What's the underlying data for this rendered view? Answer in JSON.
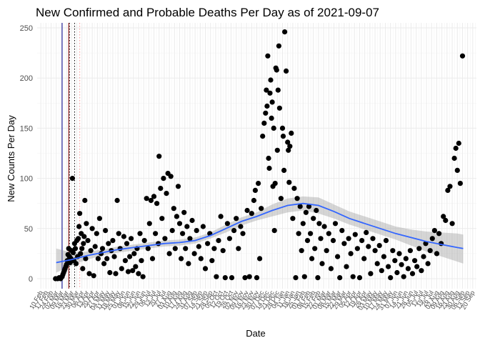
{
  "chart_data": {
    "type": "scatter",
    "title": "New Confirmed and Probable Deaths Per Day as of 2021-09-07",
    "xlabel": "Date",
    "ylabel": "New Counts Per Day",
    "xlim": [
      "2020-02-05",
      "2021-09-25"
    ],
    "ylim": [
      -10,
      255
    ],
    "y_ticks": [
      0,
      50,
      100,
      150,
      200,
      250
    ],
    "x_tick_labels": [
      "10 Feb",
      "17 Feb",
      "24 Feb",
      "02 Mar",
      "09 Mar",
      "16 Mar",
      "23 Mar",
      "30 Mar",
      "06 Apr",
      "13 Apr",
      "20 Apr",
      "27 Apr",
      "04 May",
      "11 May",
      "18 May",
      "25 May",
      "01 Jun",
      "08 Jun",
      "15 Jun",
      "22 Jun",
      "29 Jun",
      "06 Jul",
      "13 Jul",
      "20 Jul",
      "27 Jul",
      "03 Aug",
      "10 Aug",
      "17 Aug",
      "24 Aug",
      "31 Aug",
      "07 Sep",
      "14 Sep",
      "21 Sep",
      "28 Sep",
      "05 Oct",
      "12 Oct",
      "19 Oct",
      "26 Oct",
      "02 Nov",
      "09 Nov",
      "16 Nov",
      "23 Nov",
      "30 Nov",
      "07 Dec",
      "14 Dec",
      "21 Dec",
      "28 Dec",
      "04 Jan",
      "11 Jan",
      "18 Jan",
      "25 Jan",
      "01 Feb",
      "08 Feb",
      "15 Feb",
      "22 Feb",
      "01 Mar",
      "08 Mar",
      "15 Mar",
      "22 Mar",
      "29 Mar",
      "05 Apr",
      "12 Apr",
      "19 Apr",
      "26 Apr",
      "03 May",
      "10 May",
      "17 May",
      "24 May",
      "31 May",
      "07 Jun",
      "14 Jun",
      "21 Jun",
      "28 Jun",
      "05 Jul",
      "12 Jul",
      "19 Jul",
      "26 Jul",
      "02 Aug",
      "09 Aug",
      "16 Aug",
      "23 Aug",
      "30 Aug",
      "06 Sep",
      "13 Sep",
      "20 Sep"
    ],
    "grid": true,
    "point_color": "#000000",
    "smooth_color": "#3366ff",
    "band_color": "#999999",
    "vlines": [
      {
        "x": "2020-03-10",
        "color": "#00008b",
        "style": "solid"
      },
      {
        "x": "2020-03-19",
        "color": "#8b0000",
        "style": "solid"
      },
      {
        "x": "2020-03-20",
        "color": "#000000",
        "style": "dotted"
      },
      {
        "x": "2020-03-27",
        "color": "#000000",
        "style": "dotted"
      },
      {
        "x": "2020-04-03",
        "color": "#ff9999",
        "style": "dotted"
      }
    ],
    "smooth": {
      "x": [
        "2020-03-02",
        "2020-03-23",
        "2020-04-13",
        "2020-05-04",
        "2020-05-25",
        "2020-06-15",
        "2020-07-06",
        "2020-07-27",
        "2020-08-17",
        "2020-09-07",
        "2020-09-28",
        "2020-10-19",
        "2020-11-09",
        "2020-11-30",
        "2020-12-21",
        "2021-01-11",
        "2021-02-01",
        "2021-02-22",
        "2021-03-15",
        "2021-04-05",
        "2021-04-26",
        "2021-05-17",
        "2021-06-07",
        "2021-06-28",
        "2021-07-19",
        "2021-08-09",
        "2021-08-30",
        "2021-09-07"
      ],
      "y": [
        16,
        19,
        23,
        26,
        29,
        31,
        33,
        35,
        36,
        38,
        43,
        50,
        57,
        62,
        68,
        73,
        75,
        73,
        67,
        60,
        55,
        50,
        45,
        41,
        37,
        34,
        31,
        30
      ],
      "lower": [
        6,
        13,
        19,
        23,
        26,
        28,
        30,
        32,
        33,
        35,
        40,
        46,
        53,
        58,
        62,
        66,
        68,
        65,
        60,
        54,
        49,
        44,
        39,
        33,
        27,
        22,
        17,
        15
      ],
      "upper": [
        30,
        26,
        27,
        29,
        32,
        34,
        36,
        38,
        39,
        41,
        46,
        54,
        61,
        66,
        74,
        80,
        82,
        81,
        74,
        67,
        62,
        57,
        52,
        49,
        47,
        46,
        45,
        44
      ]
    },
    "points": [
      [
        "2020-03-01",
        0
      ],
      [
        "2020-03-04",
        0
      ],
      [
        "2020-03-06",
        1
      ],
      [
        "2020-03-08",
        0
      ],
      [
        "2020-03-10",
        2
      ],
      [
        "2020-03-11",
        4
      ],
      [
        "2020-03-12",
        6
      ],
      [
        "2020-03-13",
        8
      ],
      [
        "2020-03-14",
        10
      ],
      [
        "2020-03-15",
        12
      ],
      [
        "2020-03-16",
        14
      ],
      [
        "2020-03-17",
        18
      ],
      [
        "2020-03-18",
        24
      ],
      [
        "2020-03-19",
        30
      ],
      [
        "2020-03-20",
        22
      ],
      [
        "2020-03-21",
        16
      ],
      [
        "2020-03-22",
        20
      ],
      [
        "2020-03-23",
        28
      ],
      [
        "2020-03-24",
        100
      ],
      [
        "2020-03-25",
        26
      ],
      [
        "2020-03-26",
        18
      ],
      [
        "2020-03-27",
        35
      ],
      [
        "2020-03-28",
        30
      ],
      [
        "2020-03-29",
        15
      ],
      [
        "2020-03-30",
        38
      ],
      [
        "2020-03-31",
        22
      ],
      [
        "2020-04-01",
        40
      ],
      [
        "2020-04-02",
        52
      ],
      [
        "2020-04-03",
        65
      ],
      [
        "2020-04-04",
        25
      ],
      [
        "2020-04-05",
        45
      ],
      [
        "2020-04-06",
        30
      ],
      [
        "2020-04-07",
        10
      ],
      [
        "2020-04-08",
        35
      ],
      [
        "2020-04-09",
        42
      ],
      [
        "2020-04-10",
        78
      ],
      [
        "2020-04-11",
        20
      ],
      [
        "2020-04-12",
        55
      ],
      [
        "2020-04-14",
        38
      ],
      [
        "2020-04-16",
        5
      ],
      [
        "2020-04-18",
        28
      ],
      [
        "2020-04-20",
        50
      ],
      [
        "2020-04-22",
        3
      ],
      [
        "2020-04-24",
        32
      ],
      [
        "2020-04-26",
        45
      ],
      [
        "2020-04-28",
        20
      ],
      [
        "2020-04-30",
        60
      ],
      [
        "2020-05-02",
        25
      ],
      [
        "2020-05-04",
        30
      ],
      [
        "2020-05-06",
        15
      ],
      [
        "2020-05-08",
        48
      ],
      [
        "2020-05-10",
        20
      ],
      [
        "2020-05-12",
        35
      ],
      [
        "2020-05-14",
        6
      ],
      [
        "2020-05-16",
        28
      ],
      [
        "2020-05-18",
        38
      ],
      [
        "2020-05-20",
        22
      ],
      [
        "2020-05-22",
        5
      ],
      [
        "2020-05-24",
        78
      ],
      [
        "2020-05-26",
        45
      ],
      [
        "2020-05-28",
        30
      ],
      [
        "2020-05-30",
        10
      ],
      [
        "2020-06-02",
        42
      ],
      [
        "2020-06-04",
        18
      ],
      [
        "2020-06-06",
        35
      ],
      [
        "2020-06-08",
        7
      ],
      [
        "2020-06-10",
        22
      ],
      [
        "2020-06-12",
        40
      ],
      [
        "2020-06-14",
        8
      ],
      [
        "2020-06-16",
        25
      ],
      [
        "2020-06-18",
        12
      ],
      [
        "2020-06-20",
        30
      ],
      [
        "2020-06-22",
        5
      ],
      [
        "2020-06-24",
        45
      ],
      [
        "2020-06-26",
        18
      ],
      [
        "2020-06-28",
        2
      ],
      [
        "2020-06-30",
        38
      ],
      [
        "2020-07-03",
        80
      ],
      [
        "2020-07-05",
        30
      ],
      [
        "2020-07-07",
        55
      ],
      [
        "2020-07-09",
        78
      ],
      [
        "2020-07-11",
        20
      ],
      [
        "2020-07-13",
        82
      ],
      [
        "2020-07-15",
        45
      ],
      [
        "2020-07-17",
        75
      ],
      [
        "2020-07-19",
        35
      ],
      [
        "2020-07-20",
        122
      ],
      [
        "2020-07-22",
        90
      ],
      [
        "2020-07-24",
        60
      ],
      [
        "2020-07-26",
        100
      ],
      [
        "2020-07-28",
        40
      ],
      [
        "2020-07-30",
        85
      ],
      [
        "2020-08-01",
        105
      ],
      [
        "2020-08-03",
        25
      ],
      [
        "2020-08-05",
        102
      ],
      [
        "2020-08-07",
        48
      ],
      [
        "2020-08-09",
        70
      ],
      [
        "2020-08-11",
        30
      ],
      [
        "2020-08-13",
        62
      ],
      [
        "2020-08-15",
        92
      ],
      [
        "2020-08-17",
        55
      ],
      [
        "2020-08-19",
        20
      ],
      [
        "2020-08-21",
        45
      ],
      [
        "2020-08-23",
        66
      ],
      [
        "2020-08-25",
        30
      ],
      [
        "2020-08-27",
        52
      ],
      [
        "2020-08-29",
        15
      ],
      [
        "2020-08-31",
        40
      ],
      [
        "2020-09-03",
        58
      ],
      [
        "2020-09-06",
        25
      ],
      [
        "2020-09-09",
        48
      ],
      [
        "2020-09-12",
        32
      ],
      [
        "2020-09-15",
        20
      ],
      [
        "2020-09-18",
        52
      ],
      [
        "2020-09-21",
        10
      ],
      [
        "2020-09-24",
        35
      ],
      [
        "2020-09-27",
        45
      ],
      [
        "2020-09-30",
        18
      ],
      [
        "2020-10-03",
        30
      ],
      [
        "2020-10-06",
        2
      ],
      [
        "2020-10-09",
        38
      ],
      [
        "2020-10-12",
        62
      ],
      [
        "2020-10-15",
        28
      ],
      [
        "2020-10-18",
        1
      ],
      [
        "2020-10-21",
        55
      ],
      [
        "2020-10-24",
        40
      ],
      [
        "2020-10-27",
        1
      ],
      [
        "2020-10-30",
        48
      ],
      [
        "2020-11-02",
        60
      ],
      [
        "2020-11-05",
        30
      ],
      [
        "2020-11-08",
        52
      ],
      [
        "2020-11-11",
        45
      ],
      [
        "2020-11-14",
        1
      ],
      [
        "2020-11-17",
        68
      ],
      [
        "2020-11-20",
        2
      ],
      [
        "2020-11-23",
        65
      ],
      [
        "2020-11-26",
        78
      ],
      [
        "2020-11-28",
        88
      ],
      [
        "2020-11-30",
        1
      ],
      [
        "2020-12-02",
        95
      ],
      [
        "2020-12-04",
        20
      ],
      [
        "2020-12-06",
        70
      ],
      [
        "2020-12-08",
        142
      ],
      [
        "2020-12-10",
        155
      ],
      [
        "2020-12-12",
        165
      ],
      [
        "2020-12-13",
        188
      ],
      [
        "2020-12-14",
        172
      ],
      [
        "2020-12-15",
        222
      ],
      [
        "2020-12-16",
        120
      ],
      [
        "2020-12-17",
        110
      ],
      [
        "2020-12-18",
        185
      ],
      [
        "2020-12-19",
        198
      ],
      [
        "2020-12-20",
        160
      ],
      [
        "2020-12-21",
        176
      ],
      [
        "2020-12-22",
        92
      ],
      [
        "2020-12-23",
        150
      ],
      [
        "2020-12-24",
        48
      ],
      [
        "2020-12-25",
        95
      ],
      [
        "2020-12-26",
        210
      ],
      [
        "2020-12-27",
        208
      ],
      [
        "2020-12-28",
        128
      ],
      [
        "2020-12-29",
        188
      ],
      [
        "2020-12-30",
        232
      ],
      [
        "2020-12-31",
        170
      ],
      [
        "2021-01-02",
        80
      ],
      [
        "2021-01-04",
        150
      ],
      [
        "2021-01-05",
        142
      ],
      [
        "2021-01-06",
        108
      ],
      [
        "2021-01-07",
        246
      ],
      [
        "2021-01-09",
        207
      ],
      [
        "2021-01-11",
        136
      ],
      [
        "2021-01-12",
        128
      ],
      [
        "2021-01-13",
        96
      ],
      [
        "2021-01-14",
        132
      ],
      [
        "2021-01-16",
        145
      ],
      [
        "2021-01-18",
        60
      ],
      [
        "2021-01-20",
        90
      ],
      [
        "2021-01-22",
        1
      ],
      [
        "2021-01-24",
        80
      ],
      [
        "2021-01-26",
        45
      ],
      [
        "2021-01-28",
        72
      ],
      [
        "2021-01-30",
        28
      ],
      [
        "2021-02-01",
        55
      ],
      [
        "2021-02-03",
        2
      ],
      [
        "2021-02-05",
        66
      ],
      [
        "2021-02-07",
        38
      ],
      [
        "2021-02-09",
        72
      ],
      [
        "2021-02-11",
        45
      ],
      [
        "2021-02-13",
        20
      ],
      [
        "2021-02-15",
        60
      ],
      [
        "2021-02-17",
        30
      ],
      [
        "2021-02-19",
        68
      ],
      [
        "2021-02-21",
        1
      ],
      [
        "2021-02-23",
        55
      ],
      [
        "2021-02-25",
        40
      ],
      [
        "2021-02-27",
        15
      ],
      [
        "2021-03-02",
        52
      ],
      [
        "2021-03-05",
        28
      ],
      [
        "2021-03-08",
        45
      ],
      [
        "2021-03-11",
        10
      ],
      [
        "2021-03-14",
        38
      ],
      [
        "2021-03-17",
        55
      ],
      [
        "2021-03-20",
        22
      ],
      [
        "2021-03-23",
        1
      ],
      [
        "2021-03-26",
        48
      ],
      [
        "2021-03-29",
        35
      ],
      [
        "2021-04-01",
        12
      ],
      [
        "2021-04-04",
        40
      ],
      [
        "2021-04-07",
        25
      ],
      [
        "2021-04-10",
        2
      ],
      [
        "2021-04-13",
        44
      ],
      [
        "2021-04-16",
        30
      ],
      [
        "2021-04-19",
        1
      ],
      [
        "2021-04-22",
        38
      ],
      [
        "2021-04-25",
        20
      ],
      [
        "2021-04-28",
        46
      ],
      [
        "2021-05-01",
        32
      ],
      [
        "2021-05-04",
        5
      ],
      [
        "2021-05-07",
        40
      ],
      [
        "2021-05-10",
        28
      ],
      [
        "2021-05-13",
        15
      ],
      [
        "2021-05-16",
        33
      ],
      [
        "2021-05-19",
        8
      ],
      [
        "2021-05-22",
        22
      ],
      [
        "2021-05-25",
        38
      ],
      [
        "2021-05-28",
        12
      ],
      [
        "2021-05-31",
        1
      ],
      [
        "2021-06-03",
        28
      ],
      [
        "2021-06-06",
        18
      ],
      [
        "2021-06-09",
        6
      ],
      [
        "2021-06-12",
        25
      ],
      [
        "2021-06-15",
        14
      ],
      [
        "2021-06-18",
        2
      ],
      [
        "2021-06-21",
        20
      ],
      [
        "2021-06-24",
        10
      ],
      [
        "2021-06-27",
        28
      ],
      [
        "2021-06-30",
        5
      ],
      [
        "2021-07-03",
        18
      ],
      [
        "2021-07-06",
        12
      ],
      [
        "2021-07-09",
        30
      ],
      [
        "2021-07-12",
        8
      ],
      [
        "2021-07-15",
        22
      ],
      [
        "2021-07-18",
        35
      ],
      [
        "2021-07-21",
        15
      ],
      [
        "2021-07-24",
        28
      ],
      [
        "2021-07-27",
        40
      ],
      [
        "2021-07-30",
        48
      ],
      [
        "2021-08-02",
        25
      ],
      [
        "2021-08-05",
        45
      ],
      [
        "2021-08-08",
        35
      ],
      [
        "2021-08-11",
        62
      ],
      [
        "2021-08-14",
        58
      ],
      [
        "2021-08-17",
        88
      ],
      [
        "2021-08-20",
        92
      ],
      [
        "2021-08-23",
        55
      ],
      [
        "2021-08-26",
        120
      ],
      [
        "2021-08-28",
        130
      ],
      [
        "2021-08-30",
        108
      ],
      [
        "2021-09-01",
        135
      ],
      [
        "2021-09-03",
        95
      ],
      [
        "2021-09-06",
        222
      ]
    ]
  }
}
